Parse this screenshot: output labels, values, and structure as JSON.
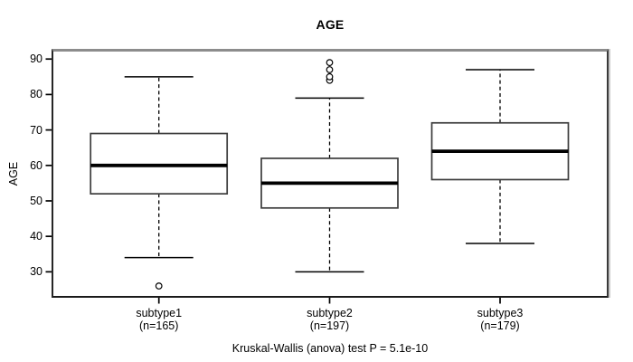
{
  "chart_data": {
    "type": "boxplot",
    "title": "AGE",
    "ylabel": "AGE",
    "xlabel": "",
    "footer": "Kruskal-Wallis (anova) test P = 5.1e-10",
    "ylim": [
      23.2,
      92.1
    ],
    "yticks": [
      30,
      40,
      50,
      60,
      70,
      80,
      90
    ],
    "grid": false,
    "colors": {
      "ink": "#000000",
      "box_stroke": "#3c3c3c",
      "frame_top_gray": "#8c8c8c",
      "background": "#ffffff"
    },
    "groups": [
      {
        "label": "subtype1",
        "sublabel": "(n=165)",
        "n": 165,
        "lower_whisker": 34,
        "q1": 52,
        "median": 60,
        "q3": 69,
        "upper_whisker": 85,
        "outliers": [
          26
        ]
      },
      {
        "label": "subtype2",
        "sublabel": "(n=197)",
        "n": 197,
        "lower_whisker": 30,
        "q1": 48,
        "median": 55,
        "q3": 62,
        "upper_whisker": 79,
        "outliers": [
          84,
          85,
          87,
          89
        ]
      },
      {
        "label": "subtype3",
        "sublabel": "(n=179)",
        "n": 179,
        "lower_whisker": 38,
        "q1": 56,
        "median": 64,
        "q3": 72,
        "upper_whisker": 87,
        "outliers": []
      }
    ]
  }
}
